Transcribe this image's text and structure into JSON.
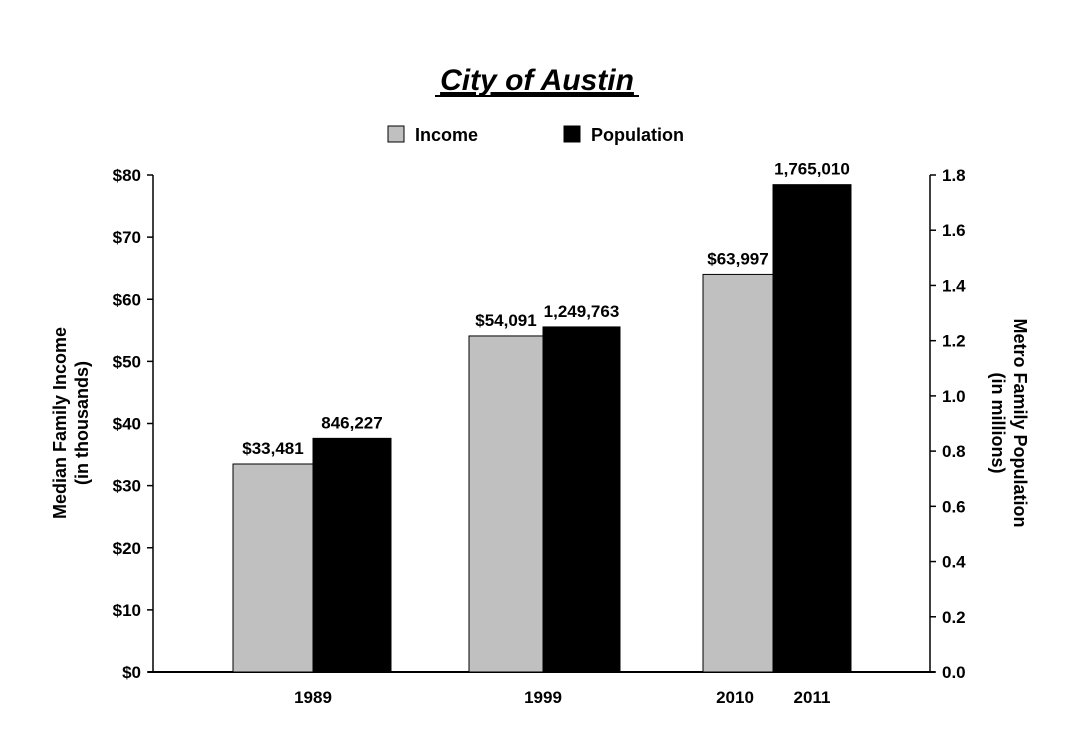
{
  "chart_data": {
    "type": "bar",
    "title": "City of Austin",
    "y_left_label_line1": "Median Family Income",
    "y_left_label_line2": "(in thousands)",
    "y_right_label_line1": "Metro Family Population",
    "y_right_label_line2": "(in millions)",
    "ylim_left": [
      0,
      80
    ],
    "ylim_right": [
      0,
      1.8
    ],
    "y_left_ticks": [
      "$0",
      "$10",
      "$20",
      "$30",
      "$40",
      "$50",
      "$60",
      "$70",
      "$80"
    ],
    "y_right_ticks": [
      "0.0",
      "0.2",
      "0.4",
      "0.6",
      "0.8",
      "1.0",
      "1.2",
      "1.4",
      "1.6",
      "1.8"
    ],
    "legend_position": "top",
    "grid": false,
    "series": [
      {
        "name": "Income",
        "axis": "left",
        "color": "#c0c0c0",
        "x_labels": [
          "1989",
          "1999",
          "2010"
        ],
        "values": [
          33.481,
          54.091,
          63.997
        ],
        "data_labels": [
          "$33,481",
          "$54,091",
          "$63,997"
        ]
      },
      {
        "name": "Population",
        "axis": "right",
        "color": "#000000",
        "x_labels": [
          "1989",
          "1999",
          "2011"
        ],
        "values": [
          0.846227,
          1.249763,
          1.76501
        ],
        "data_labels": [
          "846,227",
          "1,249,763",
          "1,765,010"
        ]
      }
    ],
    "category_labels": [
      "1989",
      "1999",
      "2010",
      "2011"
    ]
  }
}
